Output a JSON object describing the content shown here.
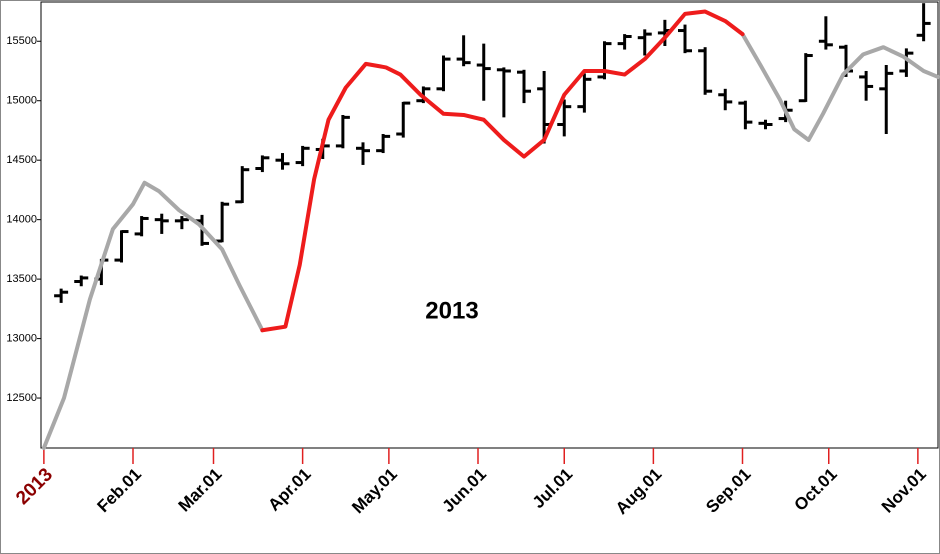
{
  "chart_data": {
    "type": "ohlc",
    "annotation": "2013",
    "xlim": [
      -1,
      311
    ],
    "ylim": [
      12080,
      15830
    ],
    "xticks": [
      {
        "value": 0,
        "label": "2013"
      },
      {
        "value": 31,
        "label": "Feb.01"
      },
      {
        "value": 59,
        "label": "Mar.01"
      },
      {
        "value": 90,
        "label": "Apr.01"
      },
      {
        "value": 120,
        "label": "May.01"
      },
      {
        "value": 151,
        "label": "Jun.01"
      },
      {
        "value": 181,
        "label": "Jul.01"
      },
      {
        "value": 212,
        "label": "Aug.01"
      },
      {
        "value": 243,
        "label": "Sep.01"
      },
      {
        "value": 273,
        "label": "Oct.01"
      },
      {
        "value": 304,
        "label": "Nov.01"
      }
    ],
    "yticks": [
      12500,
      13000,
      13500,
      14000,
      14500,
      15000,
      15500
    ],
    "color": "#000000",
    "x": [
      6,
      13,
      20,
      27,
      34,
      41,
      48,
      55,
      62,
      69,
      76,
      83,
      90,
      97,
      104,
      111,
      118,
      125,
      132,
      139,
      146,
      153,
      160,
      167,
      174,
      181,
      188,
      195,
      202,
      209,
      216,
      223,
      230,
      237,
      244,
      251,
      258,
      265,
      272,
      279,
      286,
      293,
      300,
      306
    ],
    "open": [
      13360,
      13480,
      13500,
      13660,
      13880,
      14000,
      13990,
      13990,
      13820,
      14150,
      14430,
      14500,
      14480,
      14590,
      14620,
      14600,
      14580,
      14720,
      15000,
      15100,
      15350,
      15300,
      15260,
      15240,
      15100,
      14800,
      14950,
      15200,
      15480,
      15530,
      15570,
      15590,
      15420,
      15050,
      14980,
      14810,
      14850,
      15000,
      15500,
      15450,
      15200,
      15100,
      15250,
      15550
    ],
    "high": [
      13420,
      13530,
      13670,
      13910,
      14030,
      14050,
      14030,
      14040,
      14150,
      14450,
      14540,
      14560,
      14620,
      14680,
      14880,
      14650,
      14720,
      14990,
      15120,
      15380,
      15550,
      15480,
      15280,
      15260,
      15250,
      15010,
      15230,
      15500,
      15560,
      15600,
      15680,
      15640,
      15450,
      15100,
      15000,
      14840,
      15000,
      15400,
      15710,
      15470,
      15250,
      15300,
      15440,
      15820
    ],
    "low": [
      13300,
      13440,
      13450,
      13640,
      13860,
      13880,
      13920,
      13780,
      13810,
      14140,
      14400,
      14420,
      14450,
      14510,
      14600,
      14460,
      14560,
      14690,
      14980,
      15080,
      15290,
      15000,
      14860,
      14980,
      14640,
      14700,
      14900,
      15180,
      15430,
      15380,
      15460,
      15400,
      15050,
      14920,
      14760,
      14760,
      14820,
      14990,
      15430,
      15200,
      15000,
      14720,
      15200,
      15500
    ],
    "close": [
      13390,
      13510,
      13660,
      13900,
      14010,
      13990,
      14000,
      13800,
      14130,
      14420,
      14520,
      14470,
      14600,
      14620,
      14860,
      14580,
      14700,
      14980,
      15100,
      15350,
      15320,
      15270,
      15250,
      15080,
      14800,
      14950,
      15180,
      15480,
      15540,
      15560,
      15590,
      15420,
      15080,
      14990,
      14820,
      14800,
      14920,
      15380,
      15470,
      15250,
      15120,
      15230,
      15400,
      15650
    ],
    "overlay": {
      "type": "line",
      "x": [
        0,
        7,
        16,
        24,
        31,
        35,
        40,
        47,
        54,
        62,
        68,
        76,
        84,
        89,
        94,
        99,
        105,
        112,
        119,
        124,
        131,
        139,
        146,
        153,
        160,
        167,
        174,
        181,
        188,
        195,
        202,
        209,
        216,
        223,
        230,
        237,
        243,
        249,
        256,
        261,
        266,
        271,
        278,
        285,
        292,
        299,
        306,
        311
      ],
      "series": [
        {
          "color": "#a8a8a8",
          "values": [
            12080,
            12500,
            13330,
            13920,
            14130,
            14310,
            14240,
            14080,
            13960,
            13750,
            13450,
            13070,
            null,
            null,
            null,
            null,
            null,
            null,
            null,
            null,
            null,
            null,
            null,
            null,
            null,
            null,
            null,
            null,
            null,
            null,
            null,
            null,
            null,
            null,
            null,
            null,
            15560,
            15310,
            15010,
            14760,
            14670,
            14890,
            15220,
            15390,
            15450,
            15370,
            15250,
            15200
          ]
        },
        {
          "color": "#ee1c1c",
          "values": [
            null,
            null,
            null,
            null,
            null,
            null,
            null,
            null,
            null,
            null,
            null,
            13070,
            13100,
            13620,
            14340,
            14840,
            15110,
            15310,
            15280,
            15220,
            15050,
            14890,
            14880,
            14840,
            14670,
            14530,
            14670,
            15050,
            15250,
            15250,
            15220,
            15350,
            15530,
            15730,
            15750,
            15670,
            15560,
            null,
            null,
            null,
            null,
            null,
            null,
            null,
            null,
            null,
            null,
            null
          ]
        }
      ]
    }
  }
}
